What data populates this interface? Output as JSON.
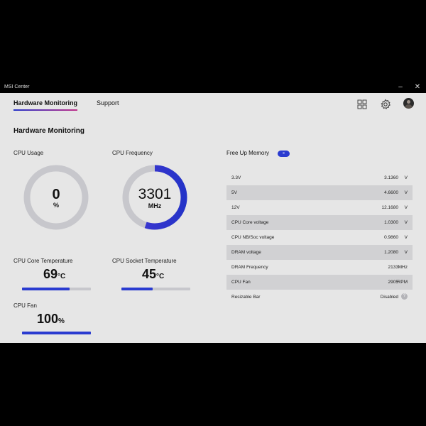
{
  "window": {
    "title": "MSI Center",
    "minimize": "–",
    "close": "✕"
  },
  "tabs": [
    {
      "label": "Hardware Monitoring"
    },
    {
      "label": "Support"
    }
  ],
  "header_icons": [
    "grid-icon",
    "gear-icon",
    "avatar"
  ],
  "page": {
    "heading": "Hardware Monitoring"
  },
  "cpu_usage": {
    "label": "CPU Usage",
    "value": "0",
    "unit": "%",
    "percent": 0
  },
  "cpu_frequency": {
    "label": "CPU Frequency",
    "value": "3301",
    "unit": "MHz",
    "fill_fraction": 0.55
  },
  "cpu_core_temp": {
    "label": "CPU Core Temperature",
    "value": "69",
    "unit": "°C",
    "bar_fraction": 0.69
  },
  "cpu_socket_temp": {
    "label": "CPU Socket Temperature",
    "value": "45",
    "unit": "°C",
    "bar_fraction": 0.45
  },
  "cpu_fan": {
    "label": "CPU Fan",
    "value": "100",
    "unit": "%",
    "bar_fraction": 1.0
  },
  "memory": {
    "label": "Free Up Memory",
    "badge": "»"
  },
  "voltages": [
    {
      "name": "3.3V",
      "value": "3.1360",
      "unit": "V"
    },
    {
      "name": "5V",
      "value": "4.6600",
      "unit": "V"
    },
    {
      "name": "12V",
      "value": "12.1680",
      "unit": "V"
    },
    {
      "name": "CPU Core voltage",
      "value": "1.0300",
      "unit": "V"
    },
    {
      "name": "CPU NB/Soc voltage",
      "value": "0.9860",
      "unit": "V"
    },
    {
      "name": "DRAM voltage",
      "value": "1.2080",
      "unit": "V"
    },
    {
      "name": "DRAM Frequency",
      "value": "2133",
      "unit": "MHz"
    },
    {
      "name": "CPU Fan",
      "value": "2905",
      "unit": "RPM"
    },
    {
      "name": "Resizable Bar",
      "value": "Disabled",
      "unit": "?"
    }
  ],
  "colors": {
    "accent": "#2a3bd0",
    "accent_purple": "#8a3bc8",
    "track": "#c7c7cc",
    "panel": "#e6e6e6",
    "row_shade": "#d1d1d3"
  }
}
